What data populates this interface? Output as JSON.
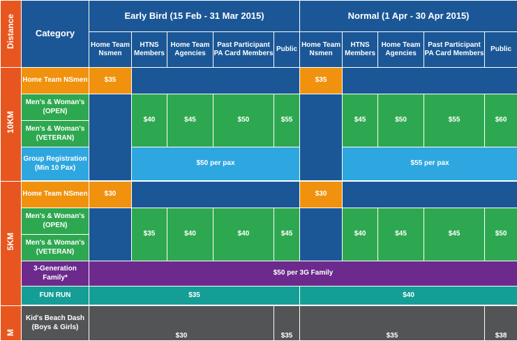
{
  "header": {
    "distance": "Distance",
    "category": "Category",
    "early_bird": "Early Bird (15 Feb - 31 Mar 2015)",
    "normal": "Normal (1 Apr - 30 Apr 2015)",
    "cols": [
      "Home Team Nsmen",
      "HTNS Members",
      "Home Team Agencies",
      "Past Participant PA Card Members",
      "Public"
    ]
  },
  "k10": {
    "label": "10KM",
    "home_team": "Home Team NSmen",
    "open": "Men's & Woman's (OPEN)",
    "veteran": "Men's & Woman's (VETERAN)",
    "group": "Group Registration (Min 10 Pax)",
    "eb_home": "$35",
    "n_home": "$35",
    "eb_prices": [
      "$40",
      "$45",
      "$50",
      "$55"
    ],
    "n_prices": [
      "$45",
      "$50",
      "$55",
      "$60"
    ],
    "eb_group": "$50 per pax",
    "n_group": "$55 per pax"
  },
  "k5": {
    "label": "5KM",
    "home_team": "Home Team NSmen",
    "open": "Men's & Woman's (OPEN)",
    "veteran": "Men's & Woman's (VETERAN)",
    "family": "3-Generation Family*",
    "fun_run": "FUN RUN",
    "eb_home": "$30",
    "n_home": "$30",
    "eb_prices": [
      "$35",
      "$40",
      "$40",
      "$45"
    ],
    "n_prices": [
      "$40",
      "$45",
      "$45",
      "$50"
    ],
    "family_price": "$50 per 3G Family",
    "eb_fun": "$35",
    "n_fun": "$40"
  },
  "kids": {
    "label": "M",
    "category": "Kid's Beach Dash (Boys & Girls)",
    "eb_main": "$30",
    "eb_public": "$35",
    "n_main": "$35",
    "n_public": "$38"
  },
  "colors": {
    "orange": "#f0920e",
    "green": "#2ea850",
    "light_blue": "#2ea7e0",
    "dark_blue": "#1b5796",
    "purple": "#6b2a8c",
    "teal": "#159e96",
    "grey": "#535456",
    "rail": "#e8561f"
  }
}
